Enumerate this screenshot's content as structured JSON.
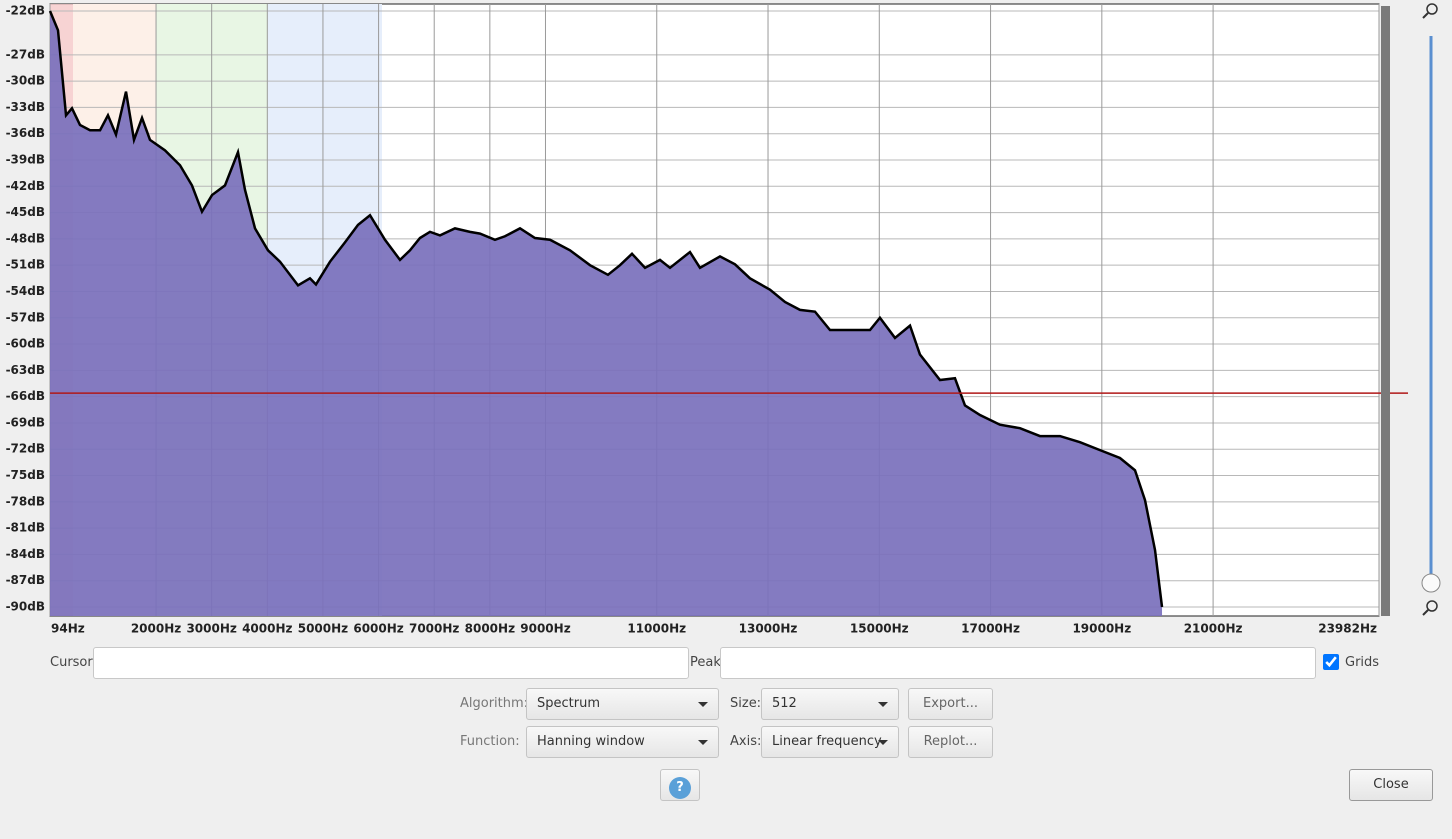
{
  "chart_data": {
    "type": "area",
    "x": [
      94,
      238,
      382,
      489,
      633,
      813,
      994,
      1136,
      1280,
      1460,
      1604,
      1748,
      1891,
      2161,
      2431,
      2646,
      2826,
      3006,
      3239,
      3473,
      3599,
      3779,
      4012,
      4228,
      4552,
      4767,
      4875,
      5127,
      5396,
      5630,
      5846,
      6115,
      6385,
      6565,
      6744,
      6924,
      7104,
      7373,
      7643,
      7823,
      8092,
      8272,
      8542,
      8811,
      9081,
      9440,
      9800,
      10123,
      10339,
      10555,
      10789,
      11058,
      11238,
      11597,
      11777,
      12137,
      12406,
      12676,
      13035,
      13305,
      13575,
      13844,
      14114,
      14384,
      14653,
      14833,
      15012,
      15282,
      15552,
      15731,
      16091,
      16360,
      16540,
      16810,
      17169,
      17529,
      17888,
      18248,
      18607,
      18967,
      19326,
      19596,
      19776,
      19956,
      20082
    ],
    "values": [
      -22.0,
      -24.2,
      -33.9,
      -33.1,
      -35.0,
      -35.6,
      -35.6,
      -33.9,
      -36.1,
      -31.2,
      -36.7,
      -34.2,
      -36.7,
      -37.9,
      -39.6,
      -41.9,
      -44.9,
      -43.0,
      -41.9,
      -38.1,
      -42.4,
      -46.8,
      -49.3,
      -50.6,
      -53.3,
      -52.5,
      -53.2,
      -50.6,
      -48.4,
      -46.4,
      -45.3,
      -48.1,
      -50.4,
      -49.3,
      -47.9,
      -47.2,
      -47.6,
      -46.8,
      -47.2,
      -47.4,
      -48.1,
      -47.7,
      -46.8,
      -47.9,
      -48.1,
      -49.3,
      -51.0,
      -52.1,
      -51.0,
      -49.7,
      -51.3,
      -50.4,
      -51.3,
      -49.5,
      -51.3,
      -50.0,
      -50.9,
      -52.5,
      -53.8,
      -55.2,
      -56.1,
      -56.3,
      -58.4,
      -58.4,
      -58.4,
      -58.4,
      -57.0,
      -59.3,
      -57.9,
      -61.2,
      -64.1,
      -63.9,
      -67.0,
      -68.1,
      -69.2,
      -69.6,
      -70.5,
      -70.5,
      -71.2,
      -72.1,
      -73.0,
      -74.4,
      -77.8,
      -83.5,
      -90.0
    ],
    "color": "#7a70bc",
    "line_color": "#000000",
    "xlim": [
      94,
      23982
    ],
    "ylim": [
      -90,
      -22
    ],
    "xticks": [
      {
        "value": 94,
        "label": "94Hz"
      },
      {
        "value": 2000,
        "label": "2000Hz"
      },
      {
        "value": 3000,
        "label": "3000Hz"
      },
      {
        "value": 4000,
        "label": "4000Hz"
      },
      {
        "value": 5000,
        "label": "5000Hz"
      },
      {
        "value": 6000,
        "label": "6000Hz"
      },
      {
        "value": 7000,
        "label": "7000Hz"
      },
      {
        "value": 8000,
        "label": "8000Hz"
      },
      {
        "value": 9000,
        "label": "9000Hz"
      },
      {
        "value": 11000,
        "label": "11000Hz"
      },
      {
        "value": 13000,
        "label": "13000Hz"
      },
      {
        "value": 15000,
        "label": "15000Hz"
      },
      {
        "value": 17000,
        "label": "17000Hz"
      },
      {
        "value": 19000,
        "label": "19000Hz"
      },
      {
        "value": 21000,
        "label": "21000Hz"
      },
      {
        "value": 23982,
        "label": "23982Hz"
      }
    ],
    "yticks": [
      {
        "value": -22,
        "label": "-22dB"
      },
      {
        "value": -27,
        "label": "-27dB"
      },
      {
        "value": -30,
        "label": "-30dB"
      },
      {
        "value": -33,
        "label": "-33dB"
      },
      {
        "value": -36,
        "label": "-36dB"
      },
      {
        "value": -39,
        "label": "-39dB"
      },
      {
        "value": -42,
        "label": "-42dB"
      },
      {
        "value": -45,
        "label": "-45dB"
      },
      {
        "value": -48,
        "label": "-48dB"
      },
      {
        "value": -51,
        "label": "-51dB"
      },
      {
        "value": -54,
        "label": "-54dB"
      },
      {
        "value": -57,
        "label": "-57dB"
      },
      {
        "value": -60,
        "label": "-60dB"
      },
      {
        "value": -63,
        "label": "-63dB"
      },
      {
        "value": -66,
        "label": "-66dB"
      },
      {
        "value": -69,
        "label": "-69dB"
      },
      {
        "value": -72,
        "label": "-72dB"
      },
      {
        "value": -75,
        "label": "-75dB"
      },
      {
        "value": -78,
        "label": "-78dB"
      },
      {
        "value": -81,
        "label": "-81dB"
      },
      {
        "value": -84,
        "label": "-84dB"
      },
      {
        "value": -87,
        "label": "-87dB"
      },
      {
        "value": -90,
        "label": "-90dB"
      }
    ],
    "grid": true,
    "reference_line": -65.6,
    "reference_color": "#b01818"
  },
  "controls": {
    "cursor_label": "Cursor:",
    "peak_label": "Peak:",
    "grids_label": "Grids",
    "grids_checked": true,
    "algorithm_label": "Algorithm:",
    "algorithm": "Spectrum",
    "size_label": "Size:",
    "size": "512",
    "export": "Export...",
    "function_label": "Function:",
    "function": "Hanning window",
    "axis_label": "Axis:",
    "axis": "Linear frequency",
    "replot": "Replot...",
    "help": "?",
    "close": "Close"
  }
}
